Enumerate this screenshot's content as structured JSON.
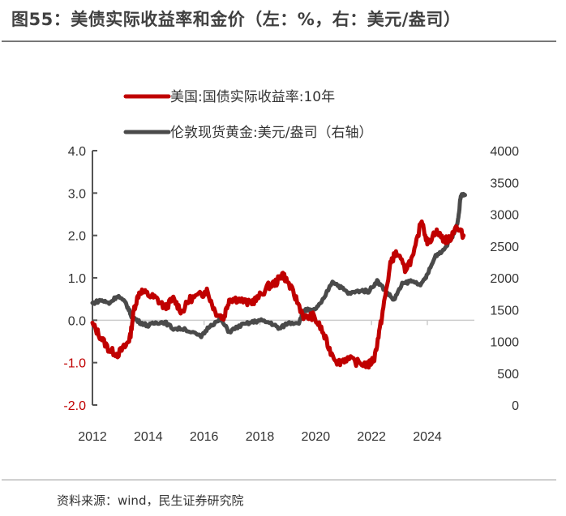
{
  "title": "图55：美债实际收益率和金价（左：%，右：美元/盎司）",
  "source": "资料来源：wind，民生证券研究院",
  "chart_data": {
    "type": "line",
    "title": "图55：美债实际收益率和金价（左：%，右：美元/盎司）",
    "xlim": [
      2012,
      2025.4
    ],
    "x_ticks": [
      "2012",
      "2014",
      "2016",
      "2018",
      "2020",
      "2022",
      "2024"
    ],
    "y_left": {
      "lim": [
        -2.0,
        4.0
      ],
      "ticks": [
        "-2.0",
        "-1.0",
        "0.0",
        "1.0",
        "2.0",
        "3.0",
        "4.0"
      ],
      "unit": "%"
    },
    "y_right": {
      "lim": [
        0,
        4000
      ],
      "ticks": [
        "0",
        "500",
        "1000",
        "1500",
        "2000",
        "2500",
        "3000",
        "3500",
        "4000"
      ],
      "unit": "美元/盎司"
    },
    "legend_position": "top-center",
    "grid": false,
    "series": [
      {
        "name": "美国:国债实际收益率:10年",
        "axis": "left",
        "color": "#c00000",
        "x": [
          2012.0,
          2012.3,
          2012.6,
          2012.9,
          2013.2,
          2013.35,
          2013.5,
          2013.7,
          2014.0,
          2014.3,
          2014.6,
          2014.9,
          2015.2,
          2015.5,
          2015.9,
          2016.1,
          2016.4,
          2016.7,
          2016.9,
          2017.2,
          2017.6,
          2017.9,
          2018.3,
          2018.6,
          2018.8,
          2019.0,
          2019.3,
          2019.6,
          2019.9,
          2020.2,
          2020.5,
          2020.8,
          2021.1,
          2021.5,
          2021.9,
          2022.1,
          2022.3,
          2022.5,
          2022.7,
          2022.9,
          2023.2,
          2023.5,
          2023.8,
          2024.0,
          2024.3,
          2024.6,
          2024.8,
          2025.0,
          2025.3
        ],
        "y": [
          -0.1,
          -0.4,
          -0.7,
          -0.8,
          -0.6,
          -0.4,
          0.3,
          0.7,
          0.6,
          0.5,
          0.3,
          0.5,
          0.2,
          0.5,
          0.6,
          0.7,
          0.2,
          0.05,
          0.5,
          0.5,
          0.4,
          0.5,
          0.8,
          0.9,
          1.1,
          0.9,
          0.5,
          0.05,
          0.1,
          -0.2,
          -0.7,
          -1.0,
          -0.9,
          -1.0,
          -1.05,
          -0.9,
          -0.2,
          0.6,
          1.4,
          1.6,
          1.2,
          1.5,
          2.4,
          1.8,
          2.1,
          1.9,
          1.9,
          2.2,
          2.0
        ]
      },
      {
        "name": "伦敦现货黄金:美元/盎司（右轴）",
        "axis": "right",
        "color": "#4a4a4a",
        "x": [
          2012.0,
          2012.3,
          2012.6,
          2012.9,
          2013.2,
          2013.4,
          2013.7,
          2014.0,
          2014.3,
          2014.6,
          2014.9,
          2015.3,
          2015.9,
          2016.2,
          2016.6,
          2016.9,
          2017.3,
          2017.7,
          2018.0,
          2018.4,
          2018.7,
          2019.0,
          2019.4,
          2019.6,
          2019.9,
          2020.2,
          2020.6,
          2020.9,
          2021.2,
          2021.6,
          2021.9,
          2022.2,
          2022.5,
          2022.8,
          2023.1,
          2023.4,
          2023.8,
          2024.0,
          2024.3,
          2024.6,
          2024.9,
          2025.1,
          2025.2,
          2025.35
        ],
        "y": [
          1600,
          1650,
          1600,
          1720,
          1600,
          1400,
          1300,
          1250,
          1300,
          1300,
          1200,
          1200,
          1070,
          1250,
          1340,
          1150,
          1250,
          1300,
          1330,
          1290,
          1200,
          1290,
          1300,
          1500,
          1480,
          1600,
          1950,
          1850,
          1750,
          1800,
          1790,
          1950,
          1800,
          1650,
          1900,
          1950,
          1900,
          2050,
          2350,
          2450,
          2650,
          2900,
          3300,
          3300
        ]
      }
    ]
  }
}
